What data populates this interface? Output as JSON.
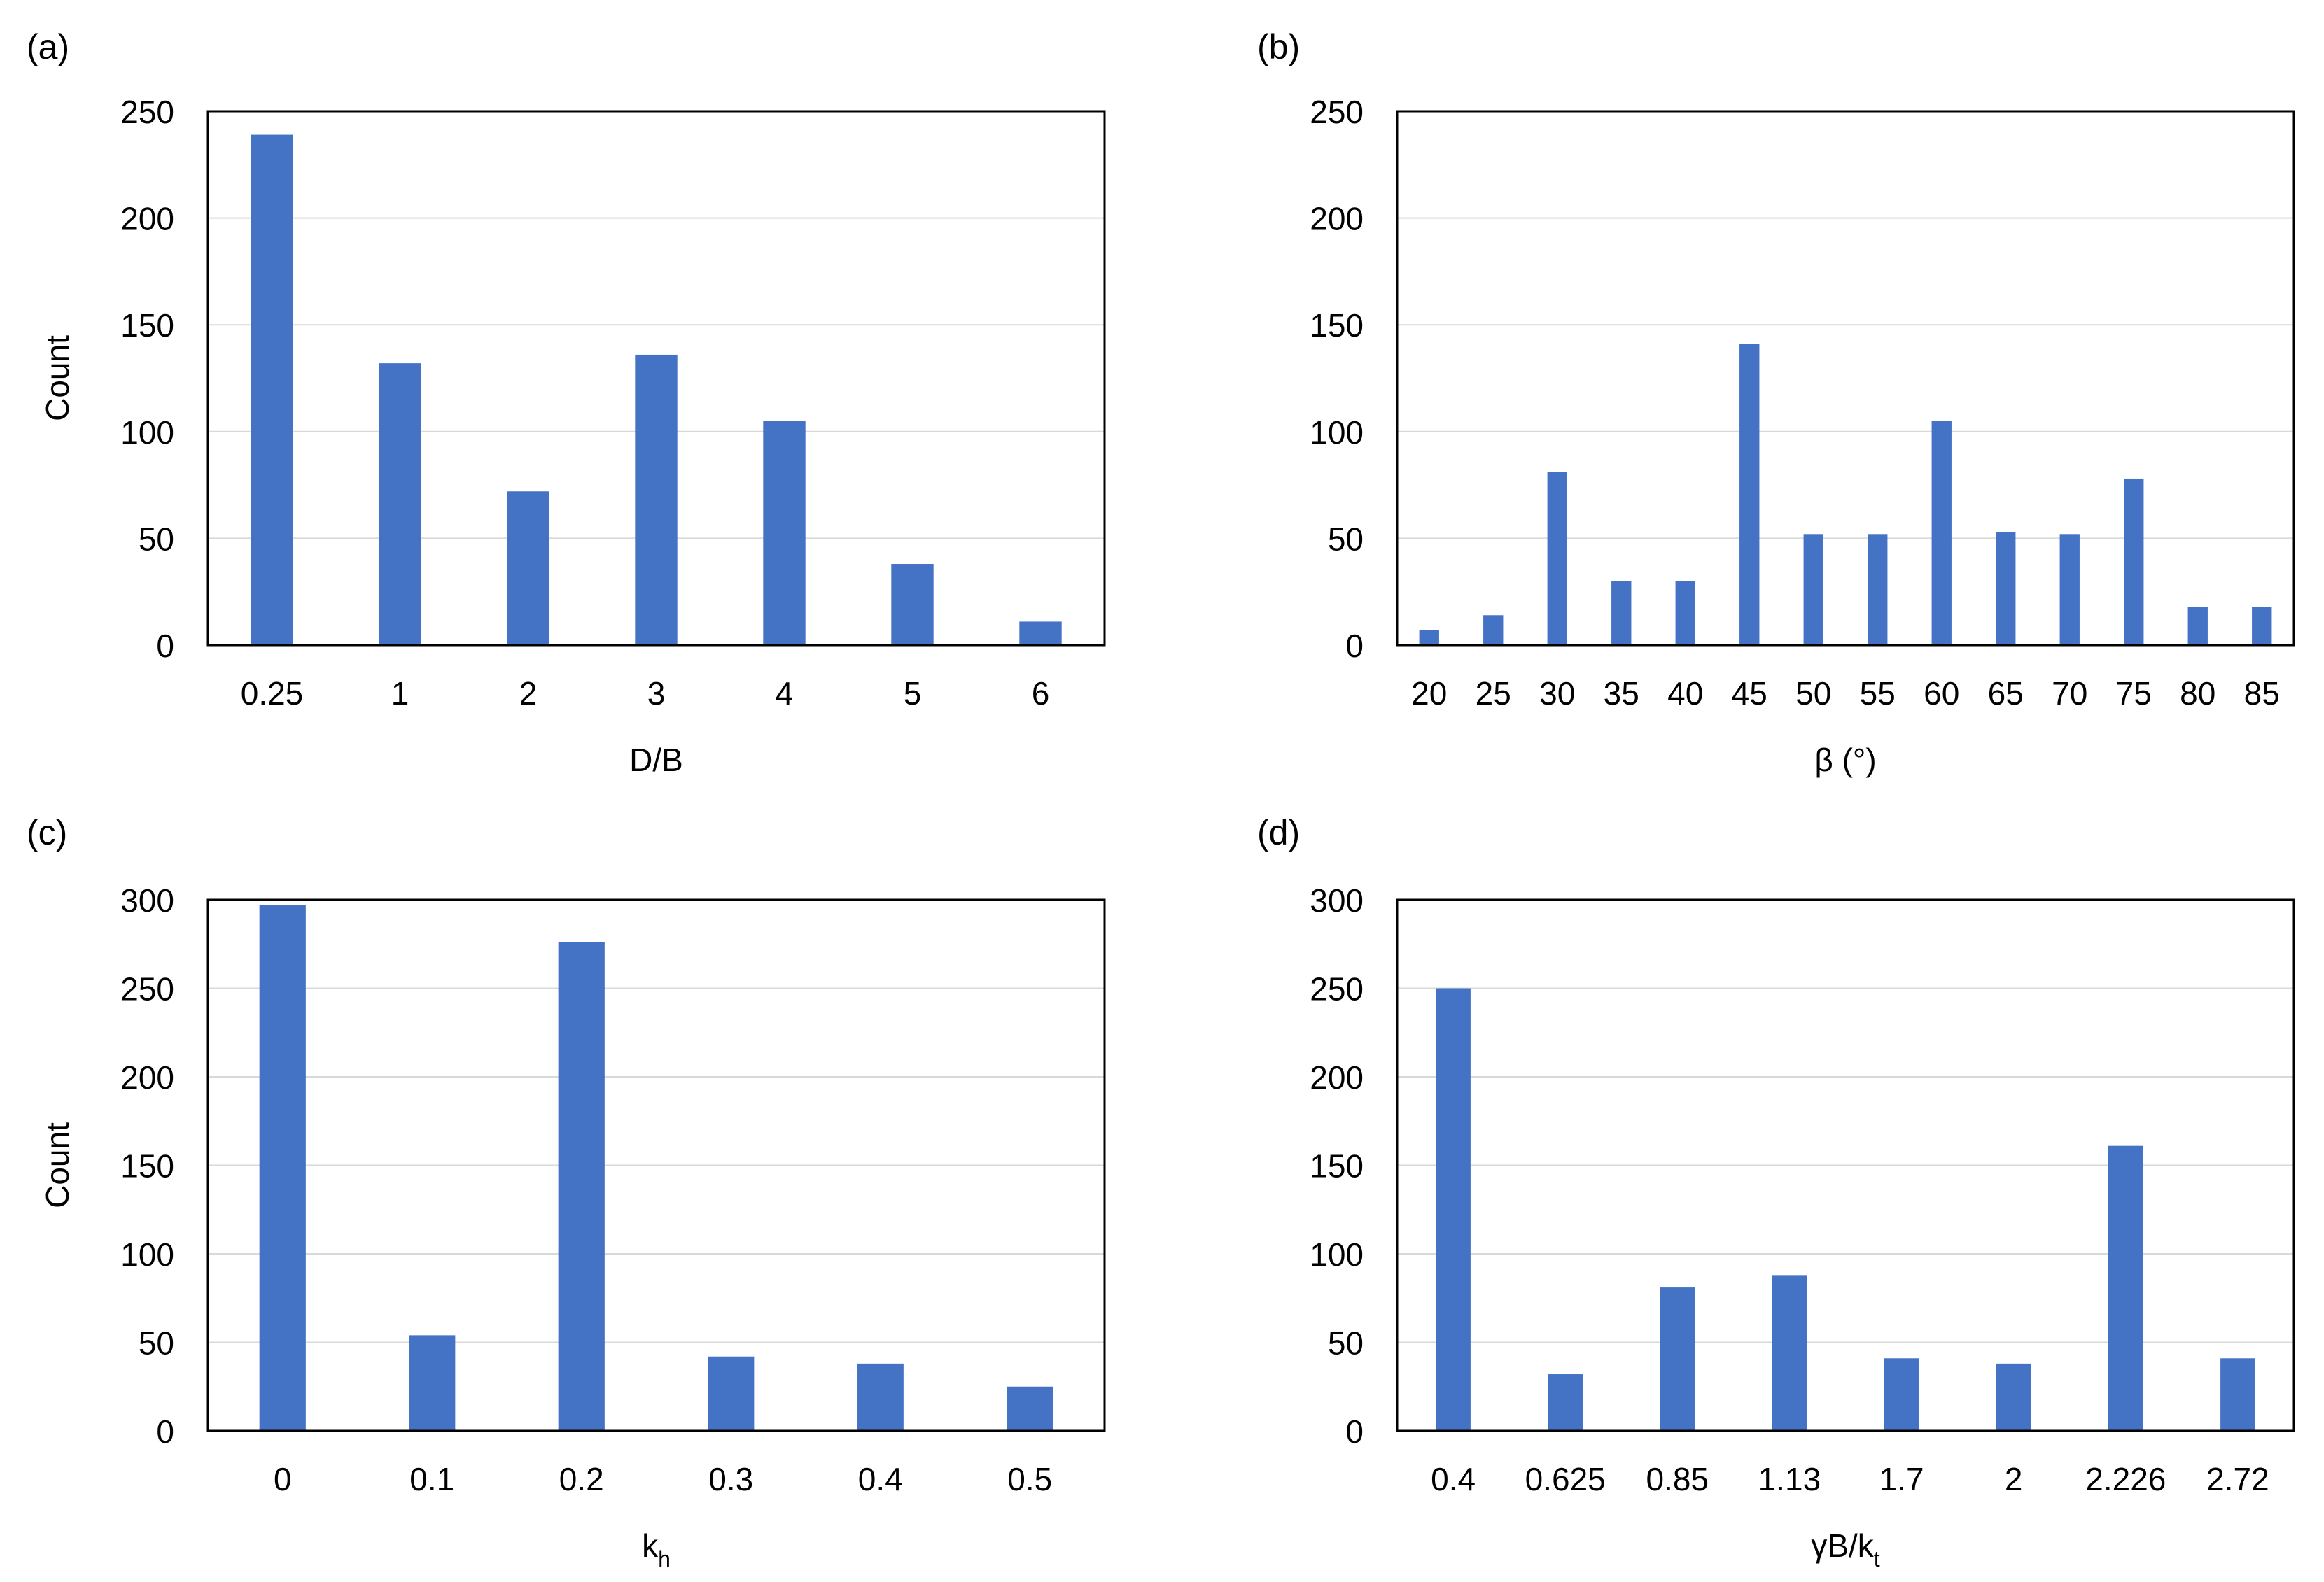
{
  "chart_data": [
    {
      "type": "bar",
      "panel_label": "(a)",
      "categories": [
        "0.25",
        "1",
        "2",
        "3",
        "4",
        "5",
        "6"
      ],
      "values": [
        239,
        132,
        72,
        136,
        105,
        38,
        11
      ],
      "xlabel": "D/B",
      "ylabel": "Count",
      "ylim": [
        0,
        250
      ],
      "yticks": [
        "0",
        "50",
        "100",
        "150",
        "200",
        "250"
      ],
      "grid": true,
      "bar_color": "#4472C4"
    },
    {
      "type": "bar",
      "panel_label": "(b)",
      "categories": [
        "20",
        "25",
        "30",
        "35",
        "40",
        "45",
        "50",
        "55",
        "60",
        "65",
        "70",
        "75",
        "80",
        "85"
      ],
      "values": [
        7,
        14,
        81,
        30,
        30,
        141,
        52,
        52,
        105,
        53,
        52,
        78,
        18,
        18
      ],
      "xlabel": "β (°)",
      "ylabel": "",
      "ylim": [
        0,
        250
      ],
      "yticks": [
        "0",
        "50",
        "100",
        "150",
        "200",
        "250"
      ],
      "grid": true,
      "bar_color": "#4472C4"
    },
    {
      "type": "bar",
      "panel_label": "(c)",
      "categories": [
        "0",
        "0.1",
        "0.2",
        "0.3",
        "0.4",
        "0.5"
      ],
      "values": [
        297,
        54,
        276,
        42,
        38,
        25
      ],
      "xlabel": "k",
      "xlabel_sub": "h",
      "ylabel": "Count",
      "ylim": [
        0,
        300
      ],
      "yticks": [
        "0",
        "50",
        "100",
        "150",
        "200",
        "250",
        "300"
      ],
      "grid": true,
      "bar_color": "#4472C4"
    },
    {
      "type": "bar",
      "panel_label": "(d)",
      "categories": [
        "0.4",
        "0.625",
        "0.85",
        "1.13",
        "1.7",
        "2",
        "2.226",
        "2.72"
      ],
      "values": [
        250,
        32,
        81,
        88,
        41,
        38,
        161,
        41
      ],
      "xlabel": "γB/k",
      "xlabel_sub": "t",
      "ylabel": "",
      "ylim": [
        0,
        300
      ],
      "yticks": [
        "0",
        "50",
        "100",
        "150",
        "200",
        "250",
        "300"
      ],
      "grid": true,
      "bar_color": "#4472C4"
    }
  ]
}
